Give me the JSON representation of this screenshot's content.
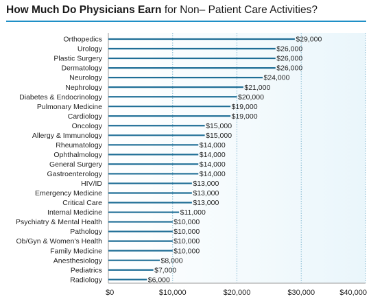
{
  "header": {
    "title_bold": "How Much Do Physicians Earn",
    "title_rest": " for Non– Patient Care Activities?"
  },
  "colors": {
    "bar": "#1f6e96",
    "plot_bg": "#eaf6fb",
    "accent": "#1f8fc6",
    "grid": "#7fb6cf"
  },
  "chart_data": {
    "type": "bar",
    "orientation": "horizontal",
    "title": "How Much Do Physicians Earn for Non– Patient Care Activities?",
    "xlabel": "",
    "ylabel": "",
    "xlim": [
      0,
      40000
    ],
    "grid": "vertical dotted",
    "categories": [
      "Orthopedics",
      "Urology",
      "Plastic Surgery",
      "Dermatology",
      "Neurology",
      "Nephrology",
      "Diabetes & Endocrinology",
      "Pulmonary Medicine",
      "Cardiology",
      "Oncology",
      "Allergy & Immunology",
      "Rheumatology",
      "Ophthalmology",
      "General Surgery",
      "Gastroenterology",
      "HIV/ID",
      "Emergency Medicine",
      "Critical Care",
      "Internal Medicine",
      "Psychiatry & Mental Health",
      "Pathology",
      "Ob/Gyn & Women's Health",
      "Family Medicine",
      "Anesthesiology",
      "Pediatrics",
      "Radiology"
    ],
    "values": [
      29000,
      26000,
      26000,
      26000,
      24000,
      21000,
      20000,
      19000,
      19000,
      15000,
      15000,
      14000,
      14000,
      14000,
      14000,
      13000,
      13000,
      13000,
      11000,
      10000,
      10000,
      10000,
      10000,
      8000,
      7000,
      6000
    ],
    "value_labels": [
      "$29,000",
      "$26,000",
      "$26,000",
      "$26,000",
      "$24,000",
      "$21,000",
      "$20,000",
      "$19,000",
      "$19,000",
      "$15,000",
      "$15,000",
      "$14,000",
      "$14,000",
      "$14,000",
      "$14,000",
      "$13,000",
      "$13,000",
      "$13,000",
      "$11,000",
      "$10,000",
      "$10,000",
      "$10,000",
      "$10,000",
      "$8,000",
      "$7,000",
      "$6,000"
    ],
    "ticks": [
      0,
      10000,
      20000,
      30000,
      40000
    ],
    "tick_labels": [
      "$0",
      "$10,000",
      "$20,000",
      "$30,000",
      "$40,000"
    ]
  }
}
